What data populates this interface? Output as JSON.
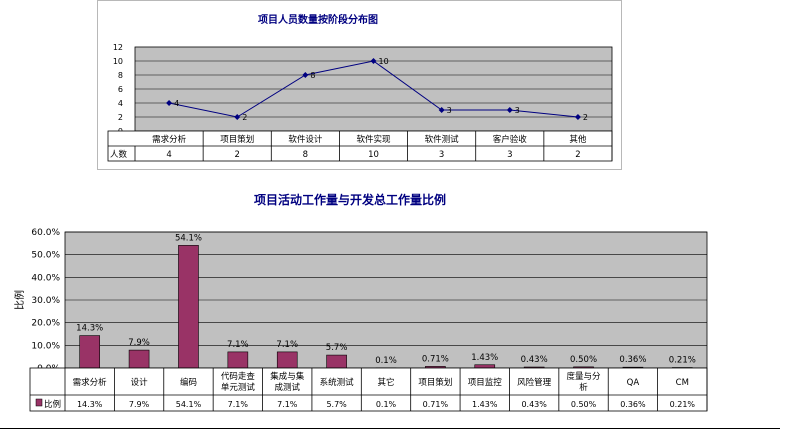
{
  "chart_data": [
    {
      "type": "line",
      "title": "项目人员数量按阶段分布图",
      "ylabel": "",
      "ylim": [
        0,
        12
      ],
      "yticks": [
        "0",
        "2",
        "4",
        "6",
        "8",
        "10",
        "12"
      ],
      "grid": true,
      "categories": [
        "需求分析",
        "项目策划",
        "软件设计",
        "软件实现",
        "软件测试",
        "客户验收",
        "其他"
      ],
      "series": [
        {
          "name": "人数",
          "values": [
            4,
            2,
            8,
            10,
            3,
            3,
            2
          ]
        }
      ],
      "data_labels": [
        "4",
        "2",
        "8",
        "10",
        "3",
        "3",
        "2"
      ],
      "table_row_label": "人数",
      "table_values": [
        "4",
        "2",
        "8",
        "10",
        "3",
        "3",
        "2"
      ]
    },
    {
      "type": "bar",
      "title": "项目活动工作量与开发总工作量比例",
      "ylabel": "比例",
      "ylim": [
        0,
        60
      ],
      "yticks": [
        "0.0%",
        "10.0%",
        "20.0%",
        "30.0%",
        "40.0%",
        "50.0%",
        "60.0%"
      ],
      "grid": true,
      "categories": [
        "需求分析",
        "设计",
        "编码",
        "代码走查单元测试",
        "集成与集成测试",
        "系统测试",
        "其它",
        "项目策划",
        "项目监控",
        "风险管理",
        "度量与分析",
        "QA",
        "CM"
      ],
      "category_lines": [
        [
          "需求分析"
        ],
        [
          "设计"
        ],
        [
          "编码"
        ],
        [
          "代码走查",
          "单元测试"
        ],
        [
          "集成与集",
          "成测试"
        ],
        [
          "系统测试"
        ],
        [
          "其它"
        ],
        [
          "项目策划"
        ],
        [
          "项目监控"
        ],
        [
          "风险管理"
        ],
        [
          "度量与分",
          "析"
        ],
        [
          "QA"
        ],
        [
          "CM"
        ]
      ],
      "series": [
        {
          "name": "比例",
          "values": [
            14.3,
            7.9,
            54.1,
            7.1,
            7.1,
            5.7,
            0.1,
            0.71,
            1.43,
            0.43,
            0.5,
            0.36,
            0.21
          ]
        }
      ],
      "data_labels": [
        "14.3%",
        "7.9%",
        "54.1%",
        "7.1%",
        "7.1%",
        "5.7%",
        "0.1%",
        "0.71%",
        "1.43%",
        "0.43%",
        "0.50%",
        "0.36%",
        "0.21%"
      ],
      "table_row_label": "比例",
      "table_values": [
        "14.3%",
        "7.9%",
        "54.1%",
        "7.1%",
        "7.1%",
        "5.7%",
        "0.1%",
        "0.71%",
        "1.43%",
        "0.43%",
        "0.50%",
        "0.36%",
        "0.21%"
      ]
    }
  ],
  "colors": {
    "plot_bg": "#c0c0c0",
    "line": "#000080",
    "bar": "#993366",
    "grid": "#000000",
    "text": "#000000",
    "title": "#000080"
  }
}
